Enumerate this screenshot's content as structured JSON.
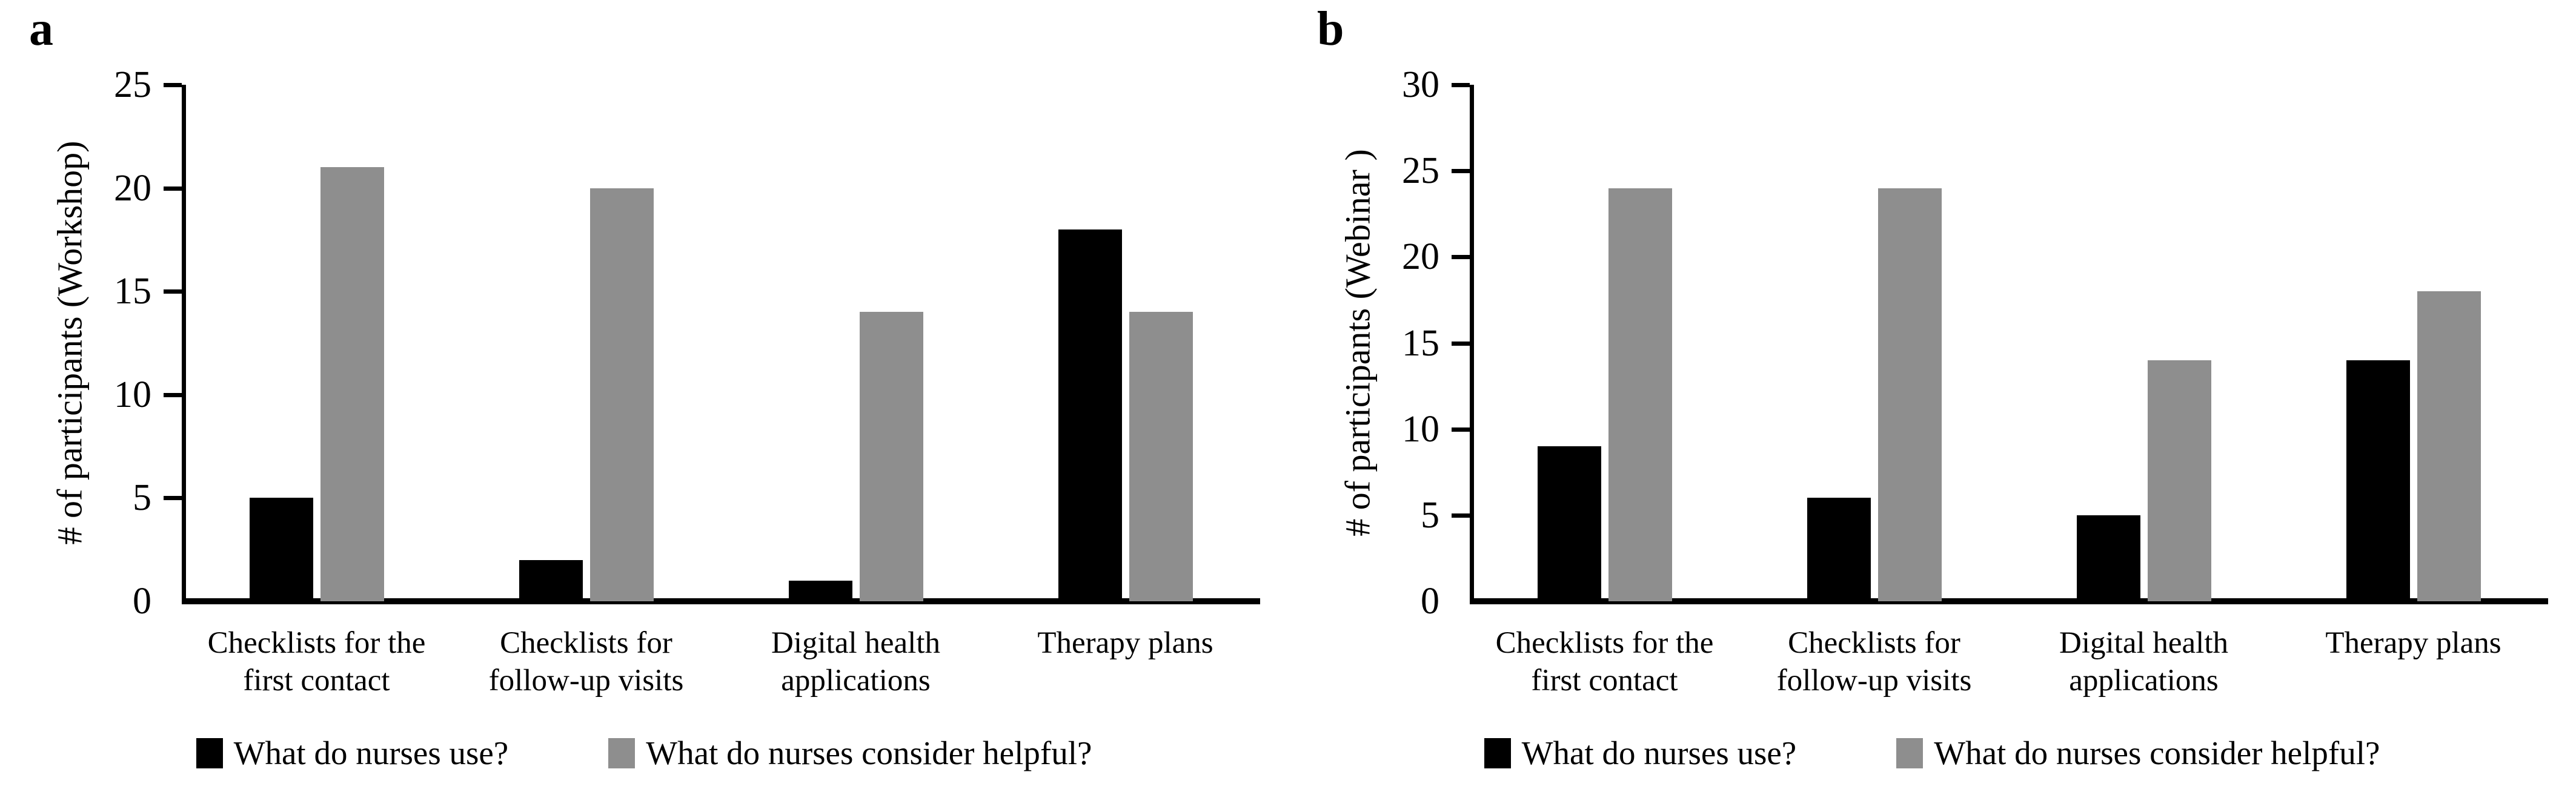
{
  "figure": {
    "colors": {
      "use": "#000000",
      "helpful": "#8e8e8e",
      "axis": "#000000",
      "background": "#ffffff"
    }
  },
  "chart_data": [
    {
      "type": "bar",
      "panel_label": "a",
      "title": "",
      "xlabel": "",
      "ylabel": "# of participants (Workshop)",
      "ylim": [
        0,
        25
      ],
      "yticks": [
        0,
        5,
        10,
        15,
        20,
        25
      ],
      "grid": false,
      "legend_position": "bottom",
      "categories": [
        "Checklists for the first contact",
        "Checklists for follow-up visits",
        "Digital health applications",
        "Therapy plans"
      ],
      "category_lines": [
        [
          "Checklists for the",
          "first contact"
        ],
        [
          "Checklists for",
          "follow-up visits"
        ],
        [
          "Digital health",
          "applications"
        ],
        [
          "Therapy plans"
        ]
      ],
      "series": [
        {
          "name": "What do nurses use?",
          "color_key": "use",
          "values": [
            5,
            2,
            1,
            18
          ]
        },
        {
          "name": "What do nurses consider helpful?",
          "color_key": "helpful",
          "values": [
            21,
            20,
            14,
            14
          ]
        }
      ]
    },
    {
      "type": "bar",
      "panel_label": "b",
      "title": "",
      "xlabel": "",
      "ylabel": "# of participants (Webinar )",
      "ylim": [
        0,
        30
      ],
      "yticks": [
        0,
        5,
        10,
        15,
        20,
        25,
        30
      ],
      "grid": false,
      "legend_position": "bottom",
      "categories": [
        "Checklists for the first contact",
        "Checklists for follow-up visits",
        "Digital health applications",
        "Therapy plans"
      ],
      "category_lines": [
        [
          "Checklists for the",
          "first contact"
        ],
        [
          "Checklists for",
          "follow-up visits"
        ],
        [
          "Digital health",
          "applications"
        ],
        [
          "Therapy plans"
        ]
      ],
      "series": [
        {
          "name": "What do nurses use?",
          "color_key": "use",
          "values": [
            9,
            6,
            5,
            14
          ]
        },
        {
          "name": "What do nurses consider helpful?",
          "color_key": "helpful",
          "values": [
            24,
            24,
            14,
            18
          ]
        }
      ]
    }
  ]
}
